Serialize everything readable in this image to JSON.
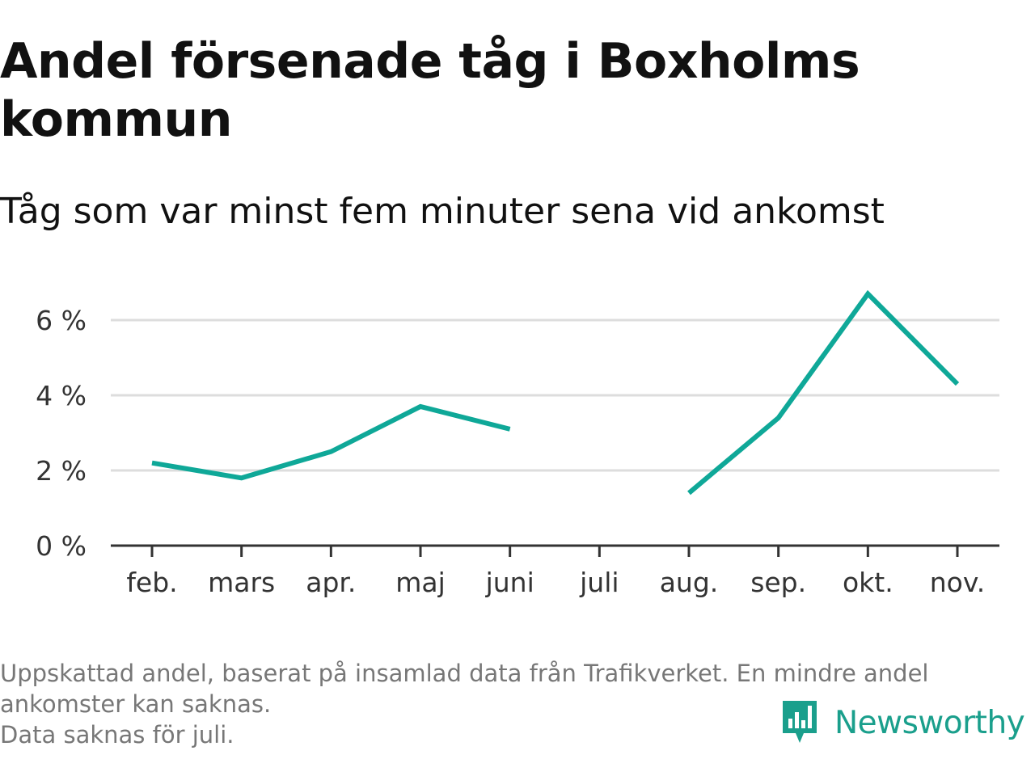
{
  "title": "Andel försenade tåg i Boxholms kommun",
  "subtitle": "Tåg som var minst fem minuter sena vid ankomst",
  "footnote": {
    "line1": "Uppskattad andel, baserat på insamlad data från Trafikverket. En mindre andel",
    "line2": "ankomster kan saknas.",
    "line3": "Data saknas för juli."
  },
  "brand": {
    "name": "Newsworthy",
    "icon": "newsworthy-bar-chart-logo",
    "color": "#1a9f8c"
  },
  "colors": {
    "line": "#0fa898",
    "grid": "#dddddd",
    "axis": "#333333",
    "text": "#111111",
    "muted": "#777777"
  },
  "chart_data": {
    "type": "line",
    "categories": [
      "feb.",
      "mars",
      "apr.",
      "maj",
      "juni",
      "juli",
      "aug.",
      "sep.",
      "okt.",
      "nov."
    ],
    "series": [
      {
        "values": [
          2.2,
          1.8,
          2.5,
          3.7,
          3.1,
          null,
          1.4,
          3.4,
          6.7,
          4.3
        ]
      }
    ],
    "ylim": [
      0,
      7
    ],
    "yticks": [
      0,
      2,
      4,
      6
    ],
    "ytick_labels": [
      "0 %",
      "2 %",
      "4 %",
      "6 %"
    ],
    "grid": true,
    "legend": "none"
  }
}
